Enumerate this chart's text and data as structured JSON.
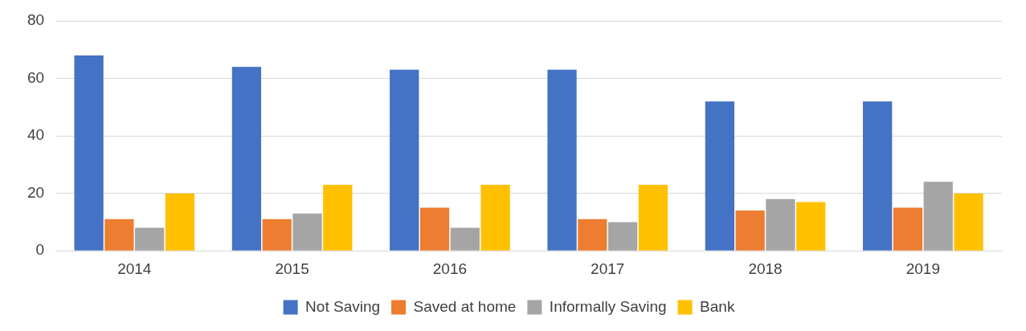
{
  "chart_data": {
    "type": "bar",
    "categories": [
      "2014",
      "2015",
      "2016",
      "2017",
      "2018",
      "2019"
    ],
    "series": [
      {
        "name": "Not Saving",
        "color": "#4472c4",
        "values": [
          68,
          64,
          63,
          63,
          52,
          52
        ]
      },
      {
        "name": "Saved at home",
        "color": "#ed7d31",
        "values": [
          11,
          11,
          15,
          11,
          14,
          15
        ]
      },
      {
        "name": "Informally Saving",
        "color": "#a5a5a5",
        "values": [
          8,
          13,
          8,
          10,
          18,
          24
        ]
      },
      {
        "name": "Bank",
        "color": "#ffc000",
        "values": [
          20,
          23,
          23,
          23,
          17,
          20
        ]
      }
    ],
    "ylim": [
      0,
      80
    ],
    "yticks": [
      0,
      20,
      40,
      60,
      80
    ],
    "grid": "y",
    "legend": "bottom"
  }
}
